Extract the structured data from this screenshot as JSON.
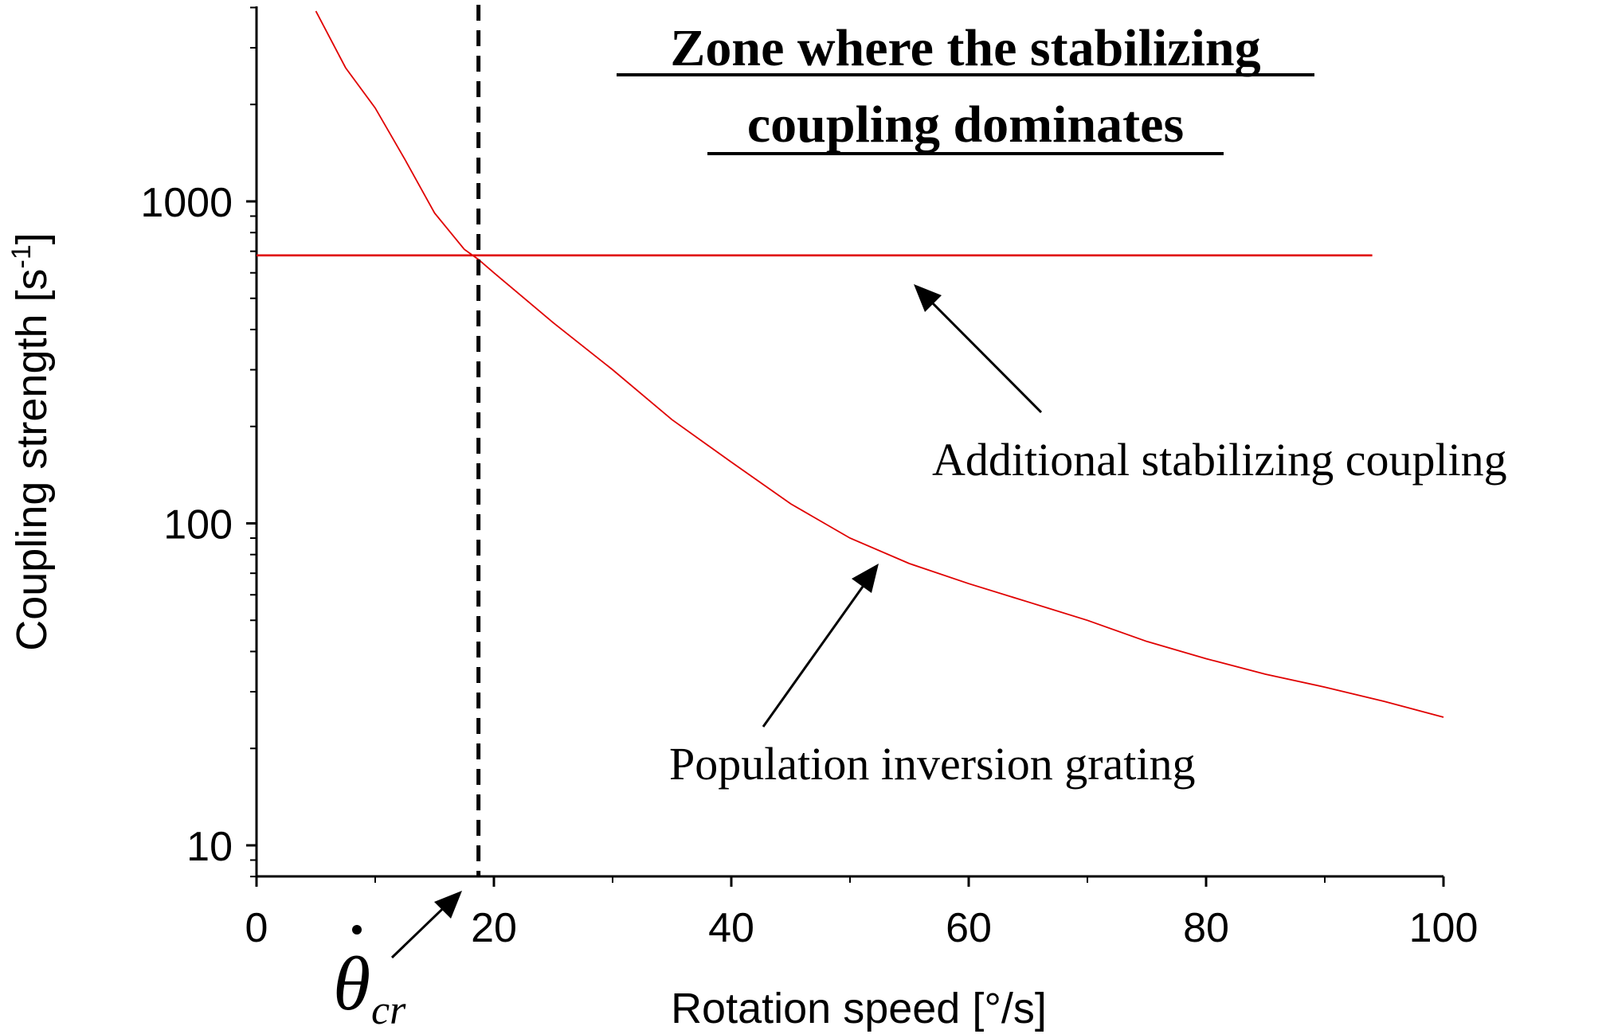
{
  "chart_data": {
    "type": "line",
    "xlabel": "Rotation speed [°/s]",
    "ylabel": "Coupling strength [s",
    "ylabel_superscript": "-1",
    "ylabel_close": "]",
    "xlim": [
      0,
      100
    ],
    "ylim": [
      8,
      4000
    ],
    "y_scale": "log",
    "x_ticks": [
      0,
      20,
      40,
      60,
      80,
      100
    ],
    "x_tick_labels": [
      "0",
      "20",
      "40",
      "60",
      "80",
      "100"
    ],
    "y_ticks": [
      10,
      100,
      1000
    ],
    "y_tick_labels": [
      "10",
      "100",
      "1000"
    ],
    "grid": false,
    "series": [
      {
        "name": "Population inversion grating",
        "color": "#e00000",
        "x": [
          5,
          7.5,
          10,
          12.5,
          15,
          17.5,
          18.7,
          20,
          25,
          30,
          35,
          40,
          45,
          50,
          55,
          60,
          65,
          70,
          75,
          80,
          85,
          90,
          95,
          100
        ],
        "y": [
          3900,
          2600,
          1950,
          1350,
          920,
          710,
          660,
          600,
          420,
          300,
          210,
          155,
          115,
          90,
          75,
          65,
          57,
          50,
          43,
          38,
          34,
          31,
          28,
          25
        ]
      },
      {
        "name": "Additional stabilizing coupling",
        "color": "#e00000",
        "x": [
          0,
          94
        ],
        "y": [
          680,
          680
        ]
      }
    ],
    "vertical_line": {
      "x": 18.7,
      "style": "dashed",
      "color": "#000000"
    },
    "annotations": {
      "zone_title_line1": "Zone where the stabilizing",
      "zone_title_line2": "coupling dominates",
      "additional_label": "Additional stabilizing coupling",
      "population_label": "Population inversion grating",
      "theta_symbol": "θ",
      "theta_subscript": "cr"
    }
  }
}
